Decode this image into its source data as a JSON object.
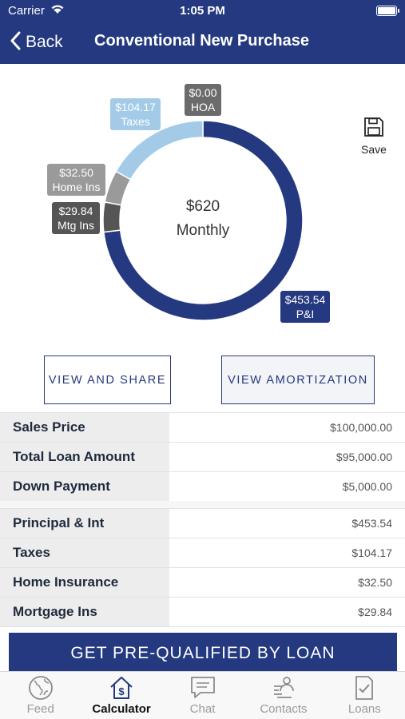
{
  "status": {
    "carrier": "Carrier",
    "time": "1:05 PM"
  },
  "nav": {
    "back": "Back",
    "title": "Conventional New Purchase"
  },
  "chart": {
    "center_amount": "$620",
    "center_label": "Monthly",
    "segments": [
      {
        "key": "pi",
        "amount": "$453.54",
        "name": "P&I",
        "value": 453.54,
        "color": "#24397f"
      },
      {
        "key": "mtg",
        "amount": "$29.84",
        "name": "Mtg Ins",
        "value": 29.84,
        "color": "#555555"
      },
      {
        "key": "home",
        "amount": "$32.50",
        "name": "Home Ins",
        "value": 32.5,
        "color": "#9a9a9a"
      },
      {
        "key": "taxes",
        "amount": "$104.17",
        "name": "Taxes",
        "value": 104.17,
        "color": "#a3cbe8"
      },
      {
        "key": "hoa",
        "amount": "$0.00",
        "name": "HOA",
        "value": 0,
        "color": "#6b6b6b"
      }
    ]
  },
  "save_label": "Save",
  "buttons": {
    "share": "VIEW AND SHARE",
    "amortization": "VIEW AMORTIZATION"
  },
  "summary": [
    {
      "label": "Sales Price",
      "value": "$100,000.00"
    },
    {
      "label": "Total Loan Amount",
      "value": "$95,000.00"
    },
    {
      "label": "Down Payment",
      "value": "$5,000.00"
    }
  ],
  "breakdown": [
    {
      "label": "Principal & Int",
      "value": "$453.54"
    },
    {
      "label": "Taxes",
      "value": "$104.17"
    },
    {
      "label": "Home Insurance",
      "value": "$32.50"
    },
    {
      "label": "Mortgage Ins",
      "value": "$29.84"
    }
  ],
  "cta": "GET PRE-QUALIFIED BY LOAN",
  "tabs": [
    {
      "label": "Feed",
      "icon": "globe-icon",
      "active": false
    },
    {
      "label": "Calculator",
      "icon": "calculator-house-icon",
      "active": true
    },
    {
      "label": "Chat",
      "icon": "chat-icon",
      "active": false
    },
    {
      "label": "Contacts",
      "icon": "contacts-icon",
      "active": false
    },
    {
      "label": "Loans",
      "icon": "loans-checklist-icon",
      "active": false
    }
  ]
}
